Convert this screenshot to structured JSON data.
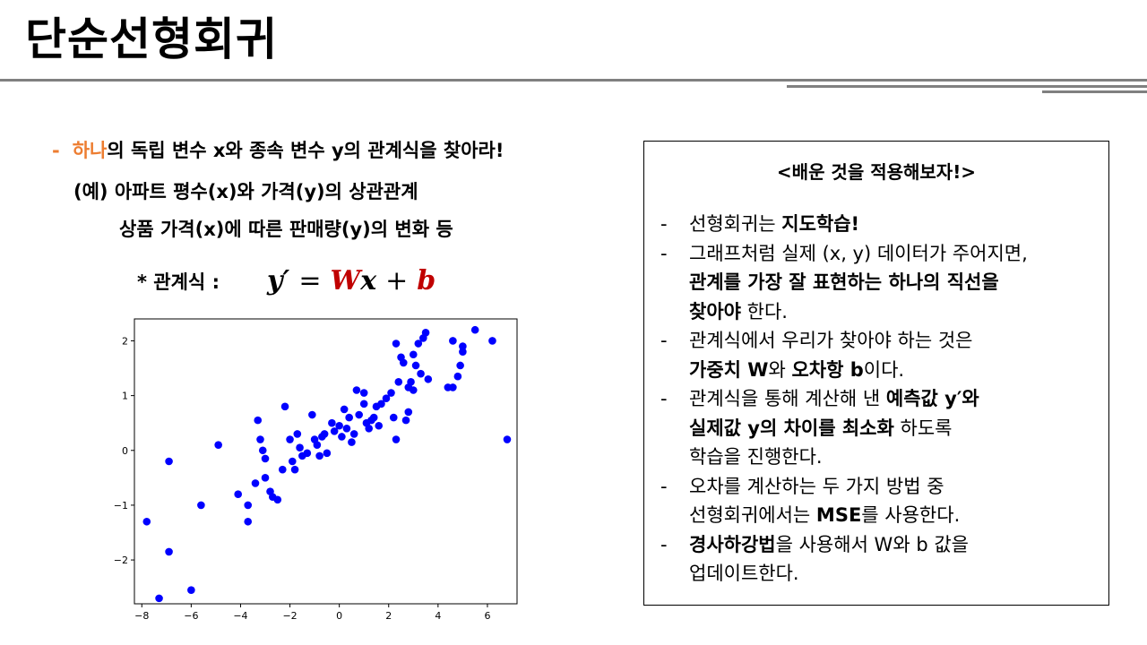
{
  "slide": {
    "title": "단순선형회귀",
    "left": {
      "line1_dash": "-",
      "line1_highlight": "하나",
      "line1_rest": "의 독립 변수 x와 종속 변수 y의 관계식을 찾아라!",
      "line2": "(예) 아파트 평수(x)와 가격(y)의 상관관계",
      "line3": "상품 가격(x)에 따른 판매량(y)의 변화 등",
      "eq_label": "* 관계식 :",
      "eq": {
        "y": "y′",
        "eqsign": "=",
        "W": "W",
        "x": "x",
        "plus": "+",
        "b": "b"
      }
    },
    "box": {
      "title": "<배운 것을 적용해보자!>",
      "dash": "-",
      "b1": {
        "a": "선형회귀는 ",
        "bold": "지도학습!"
      },
      "b2": {
        "a": "그래프처럼 실제 (x, y) 데이터가 주어지면,",
        "bold1": "관계를 가장 잘 표현하는 하나의 직선을",
        "bold2": "찾아야",
        "c": " 한다."
      },
      "b3": {
        "a": "관계식에서 우리가 찾아야 하는 것은",
        "bold1": "가중치 W",
        "c": "와 ",
        "bold2": "오차항 b",
        "d": "이다."
      },
      "b4": {
        "a": "관계식을 통해 계산해 낸 ",
        "bold1": "예측값 y′와",
        "bold2": "실제값 y의 차이를 최소화",
        "c": " 하도록",
        "d": "학습을 진행한다."
      },
      "b5": {
        "a": "오차를 계산하는 두 가지 방법 중",
        "b": "선형회귀에서는 ",
        "bold": "MSE",
        "c": "를 사용한다."
      },
      "b6": {
        "bold": "경사하강법",
        "a": "을 사용해서 W와 b 값을",
        "b": "업데이트한다."
      }
    }
  },
  "chart_data": {
    "type": "scatter",
    "color": "#0000FF",
    "xlim": [
      -8.3,
      7.2
    ],
    "ylim": [
      -2.8,
      2.4
    ],
    "xticks": [
      -8,
      -6,
      -4,
      -2,
      0,
      2,
      4,
      6
    ],
    "yticks": [
      -2,
      -1,
      0,
      1,
      2
    ],
    "points": [
      [
        -7.3,
        -2.7
      ],
      [
        -7.8,
        -1.3
      ],
      [
        -6.9,
        -1.85
      ],
      [
        -6.9,
        -0.2
      ],
      [
        -6,
        -2.55
      ],
      [
        -5.6,
        -1
      ],
      [
        -4.9,
        0.1
      ],
      [
        -4.1,
        -0.8
      ],
      [
        -3.7,
        -1
      ],
      [
        -3.7,
        -1.3
      ],
      [
        -3.4,
        -0.6
      ],
      [
        -3.3,
        0.55
      ],
      [
        -3.2,
        0.2
      ],
      [
        -3.1,
        0
      ],
      [
        -3,
        -0.5
      ],
      [
        -3,
        -0.15
      ],
      [
        -2.8,
        -0.75
      ],
      [
        -2.7,
        -0.85
      ],
      [
        -2.5,
        -0.9
      ],
      [
        -2.3,
        -0.35
      ],
      [
        -2.2,
        0.8
      ],
      [
        -2,
        0.2
      ],
      [
        -1.9,
        -0.2
      ],
      [
        -1.8,
        -0.35
      ],
      [
        -1.7,
        0.3
      ],
      [
        -1.6,
        0.05
      ],
      [
        -1.5,
        -0.1
      ],
      [
        -1.3,
        -0.05
      ],
      [
        -1.1,
        0.65
      ],
      [
        -1,
        0.2
      ],
      [
        -0.9,
        0.1
      ],
      [
        -0.8,
        -0.1
      ],
      [
        -0.6,
        0.3
      ],
      [
        -0.5,
        -0.05
      ],
      [
        -0.3,
        0.5
      ],
      [
        -0.2,
        0.35
      ],
      [
        0,
        0.45
      ],
      [
        0.1,
        0.25
      ],
      [
        0.2,
        0.75
      ],
      [
        0.3,
        0.4
      ],
      [
        0.4,
        0.6
      ],
      [
        0.5,
        0.15
      ],
      [
        0.6,
        0.3
      ],
      [
        0.7,
        1.1
      ],
      [
        0.8,
        0.65
      ],
      [
        1,
        1.05
      ],
      [
        1.1,
        0.5
      ],
      [
        1.2,
        0.4
      ],
      [
        1.3,
        0.55
      ],
      [
        1.4,
        0.6
      ],
      [
        1.5,
        0.8
      ],
      [
        1.6,
        0.45
      ],
      [
        1.7,
        0.85
      ],
      [
        1.9,
        0.95
      ],
      [
        2.1,
        1.05
      ],
      [
        2.2,
        0.6
      ],
      [
        2.3,
        0.2
      ],
      [
        2.4,
        1.25
      ],
      [
        2.5,
        1.7
      ],
      [
        2.6,
        1.6
      ],
      [
        2.7,
        0.55
      ],
      [
        2.8,
        0.7
      ],
      [
        2.9,
        1.25
      ],
      [
        3,
        1.1
      ],
      [
        3.1,
        1.55
      ],
      [
        3.2,
        1.95
      ],
      [
        3.3,
        1.4
      ],
      [
        3.4,
        2.05
      ],
      [
        3.5,
        2.15
      ],
      [
        3.6,
        1.3
      ],
      [
        4.4,
        1.15
      ],
      [
        4.6,
        1.15
      ],
      [
        4.6,
        2
      ],
      [
        4.8,
        1.35
      ],
      [
        4.9,
        1.55
      ],
      [
        5,
        1.8
      ],
      [
        5,
        1.9
      ],
      [
        5.5,
        2.2
      ],
      [
        6.2,
        2
      ],
      [
        6.8,
        0.2
      ],
      [
        2.8,
        1.15
      ],
      [
        1,
        0.85
      ],
      [
        -0.7,
        0.25
      ],
      [
        3,
        1.75
      ],
      [
        2.3,
        1.95
      ]
    ]
  }
}
